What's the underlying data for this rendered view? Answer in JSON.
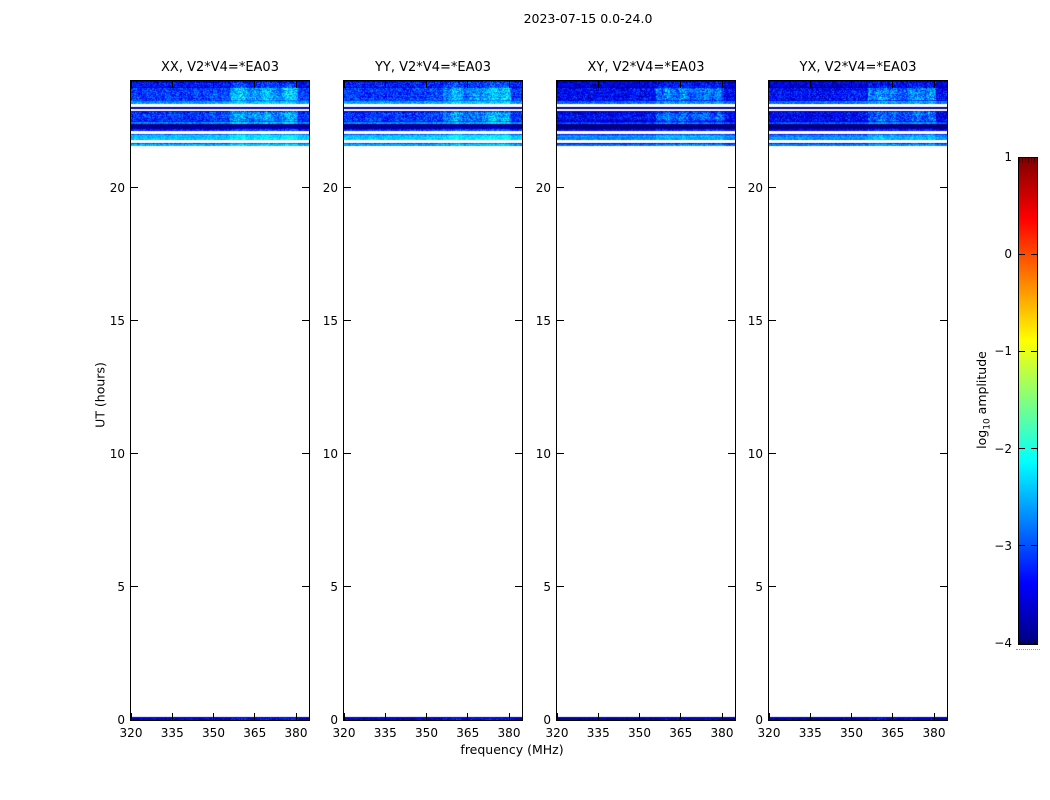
{
  "figure": {
    "title": "2023-07-15 0.0-24.0",
    "xlabel": "frequency (MHz)",
    "ylabel": "UT (hours)",
    "colorbar_label": {
      "prefix": "log",
      "sub": "10",
      "suffix": " amplitude"
    }
  },
  "axes": {
    "x_ticks": [
      "320",
      "335",
      "350",
      "365",
      "380"
    ],
    "y_ticks": [
      "0",
      "5",
      "10",
      "15",
      "20"
    ],
    "background": "#ffffff",
    "spine_color": "#000000"
  },
  "colorbar": {
    "ticks": [
      "1",
      "0",
      "−1",
      "−2",
      "−3",
      "−4"
    ],
    "tick_values": [
      1,
      0,
      -1,
      -2,
      -3,
      -4
    ],
    "range": [
      -4,
      1
    ],
    "colormap": "jet",
    "color_stops": [
      "#000080",
      "#0000ff",
      "#00ffff",
      "#ffff00",
      "#ff0000",
      "#800000"
    ]
  },
  "chart_data": {
    "type": "heatmap",
    "title": "2023-07-15 0.0-24.0",
    "xlabel": "frequency (MHz)",
    "ylabel": "UT (hours)",
    "xlim": [
      320,
      384.7
    ],
    "ylim": [
      0,
      24
    ],
    "x_tick_values": [
      320,
      335,
      350,
      365,
      380
    ],
    "y_tick_values": [
      0,
      5,
      10,
      15,
      20
    ],
    "grid": false,
    "colorbar": {
      "label": "log10 amplitude",
      "range": [
        -4,
        1
      ],
      "ticks": [
        1,
        0,
        -1,
        -2,
        -3,
        -4
      ],
      "cmap": "jet"
    },
    "panels": [
      {
        "pol": "XX",
        "title": "XX, V2*V4=*EA03",
        "level_offset": 0.0
      },
      {
        "pol": "YY",
        "title": "YY, V2*V4=*EA03",
        "level_offset": 0.0
      },
      {
        "pol": "XY",
        "title": "XY, V2*V4=*EA03",
        "level_offset": -0.3
      },
      {
        "pol": "YX",
        "title": "YX, V2*V4=*EA03",
        "level_offset": -0.25
      }
    ],
    "enhanced_freq_range_mhz": [
      356,
      380
    ],
    "observed_ut_ranges": [
      [
        21.57,
        24.0
      ],
      [
        0.0,
        0.1
      ]
    ],
    "bands": [
      {
        "ut_start": 23.76,
        "ut_end": 24.0,
        "level": -3.3,
        "noise": 0.45,
        "enh": 0.3
      },
      {
        "ut_start": 23.27,
        "ut_end": 23.76,
        "level": -3.1,
        "noise": 0.45,
        "enh": 0.8
      },
      {
        "ut_start": 23.14,
        "ut_end": 23.27,
        "level": -2.6,
        "noise": 0.3,
        "enh": 0.35
      },
      {
        "ut_start": 22.95,
        "ut_end": 23.03,
        "level": -3.8,
        "noise": 0.2,
        "enh": 0.15
      },
      {
        "ut_start": 22.5,
        "ut_end": 22.87,
        "level": -3.15,
        "noise": 0.45,
        "enh": 0.7
      },
      {
        "ut_start": 22.38,
        "ut_end": 22.5,
        "level": -2.8,
        "noise": 0.3,
        "enh": 0.4
      },
      {
        "ut_start": 22.23,
        "ut_end": 22.38,
        "level": -3.9,
        "noise": 0.12,
        "enh": 0.08
      },
      {
        "ut_start": 22.12,
        "ut_end": 22.23,
        "level": -3.2,
        "noise": 0.3,
        "enh": 0.3
      },
      {
        "ut_start": 21.78,
        "ut_end": 22.01,
        "level": -2.4,
        "noise": 0.25,
        "enh": 0.3
      },
      {
        "ut_start": 21.57,
        "ut_end": 21.69,
        "level": -2.55,
        "noise": 0.25,
        "enh": 0.25
      },
      {
        "ut_start": 0.0,
        "ut_end": 0.1,
        "level": -3.55,
        "noise": 0.35,
        "enh": 0.3
      }
    ]
  }
}
